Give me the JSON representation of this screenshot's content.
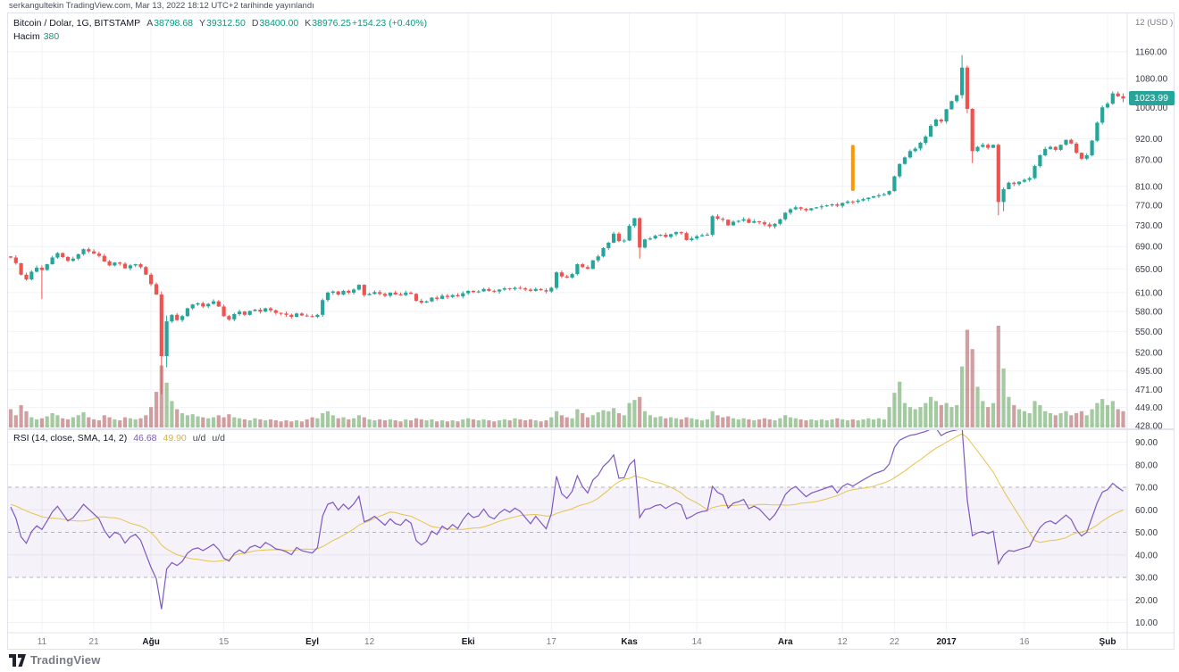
{
  "header": {
    "published": "serkangultekin TradingView.com, Mar 13, 2022 18:12 UTC+2 tarihinde yayınlandı"
  },
  "main_legend": {
    "title": "Bitcoin / Dolar, 1G, BITSTAMP",
    "ohlc": [
      {
        "k": "A",
        "v": "38798.68"
      },
      {
        "k": "Y",
        "v": "39312.50"
      },
      {
        "k": "D",
        "v": "38400.00"
      },
      {
        "k": "K",
        "v": "38976.25"
      }
    ],
    "change": "+154.23 (+0.40%)",
    "volume_label": "Hacim",
    "volume_value": "380"
  },
  "rsi_legend": {
    "title": "RSI (14, close, SMA, 14, 2)",
    "rsi_value": "46.68",
    "ma_value": "49.90",
    "suffix_tokens": [
      "u/d",
      "u/d"
    ]
  },
  "price_axis": {
    "unit_label": "12 (USD )",
    "ticks": [
      1160,
      1080,
      1000,
      920,
      870,
      810,
      770,
      730,
      690,
      650,
      610,
      580,
      550,
      520,
      495,
      471,
      449,
      428
    ],
    "last_price": "1023.99"
  },
  "rsi_axis": {
    "ticks": [
      90,
      80,
      70,
      60,
      50,
      40,
      30,
      20,
      10
    ],
    "dashed_levels": [
      70,
      50,
      30
    ]
  },
  "time_axis": {
    "labels": [
      {
        "t": "11",
        "i": 6,
        "b": 0
      },
      {
        "t": "21",
        "i": 16,
        "b": 0
      },
      {
        "t": "Ağu",
        "i": 27,
        "b": 1
      },
      {
        "t": "15",
        "i": 41,
        "b": 0
      },
      {
        "t": "Eyl",
        "i": 58,
        "b": 1
      },
      {
        "t": "12",
        "i": 69,
        "b": 0
      },
      {
        "t": "Eki",
        "i": 88,
        "b": 1
      },
      {
        "t": "17",
        "i": 104,
        "b": 0
      },
      {
        "t": "Kas",
        "i": 119,
        "b": 1
      },
      {
        "t": "14",
        "i": 132,
        "b": 0
      },
      {
        "t": "Ara",
        "i": 149,
        "b": 1
      },
      {
        "t": "12",
        "i": 160,
        "b": 0
      },
      {
        "t": "22",
        "i": 170,
        "b": 0
      },
      {
        "t": "2017",
        "i": 180,
        "b": 1
      },
      {
        "t": "16",
        "i": 195,
        "b": 0
      },
      {
        "t": "Şub",
        "i": 211,
        "b": 1
      }
    ]
  },
  "footer": {
    "brand": "TradingView"
  },
  "colors": {
    "up": "#26a69a",
    "down": "#ef5350",
    "vol_up": "rgba(103,167,99,0.6)",
    "vol_down": "rgba(178,95,98,0.6)",
    "rsi_line": "#7e57c2",
    "rsi_ma": "#e6c34d",
    "rsi_band": "rgba(126,87,194,0.08)",
    "dashed": "#9b9eab",
    "grid": "#f0f2f6",
    "separator": "#e0e3eb",
    "axis_text": "#363a45",
    "time_text": "#787b86",
    "time_text_bold": "#131722",
    "legend_value": "#089981",
    "badge_bg": "#26a69a",
    "annotation": "#ff9800"
  },
  "chart_data": {
    "type": "candlestick",
    "title": "Bitcoin / Dolar, 1G, BITSTAMP",
    "symbol": "Bitcoin / Dolar",
    "interval": "1G",
    "exchange": "BITSTAMP",
    "price_scale": "log",
    "ylim": [
      428,
      1285
    ],
    "rsi_period": 14,
    "rsi_ma_period": 14,
    "rsi_band": [
      30,
      70
    ],
    "open_rule": "previous_close",
    "preroll_closes": [
      585,
      570,
      590,
      618,
      645,
      668,
      695,
      710,
      700,
      688,
      672,
      665,
      658,
      664,
      640,
      625,
      635,
      648,
      660,
      668,
      662,
      655,
      663,
      670,
      666,
      661,
      668,
      673,
      669,
      664,
      668,
      672
    ],
    "candles": [
      [
        670,
        18
      ],
      [
        660,
        12
      ],
      [
        640,
        22
      ],
      [
        632,
        16
      ],
      [
        645,
        10
      ],
      [
        652,
        8
      ],
      [
        648,
        9
      ],
      [
        658,
        11
      ],
      [
        670,
        14
      ],
      [
        678,
        12
      ],
      [
        671,
        9
      ],
      [
        664,
        8
      ],
      [
        668,
        10
      ],
      [
        676,
        12
      ],
      [
        685,
        15
      ],
      [
        681,
        10
      ],
      [
        677,
        8
      ],
      [
        673,
        7
      ],
      [
        663,
        12
      ],
      [
        656,
        10
      ],
      [
        661,
        8
      ],
      [
        659,
        7
      ],
      [
        651,
        10
      ],
      [
        656,
        9
      ],
      [
        658,
        8
      ],
      [
        653,
        9
      ],
      [
        640,
        12
      ],
      [
        624,
        20
      ],
      [
        607,
        35
      ],
      [
        515,
        61
      ],
      [
        565,
        44
      ],
      [
        575,
        26
      ],
      [
        567,
        18
      ],
      [
        573,
        14
      ],
      [
        585,
        12
      ],
      [
        591,
        13
      ],
      [
        593,
        11
      ],
      [
        588,
        10
      ],
      [
        592,
        9
      ],
      [
        596,
        10
      ],
      [
        588,
        12
      ],
      [
        573,
        10
      ],
      [
        568,
        13
      ],
      [
        576,
        10
      ],
      [
        580,
        9
      ],
      [
        575,
        8
      ],
      [
        581,
        7
      ],
      [
        583,
        9
      ],
      [
        580,
        8
      ],
      [
        585,
        7
      ],
      [
        582,
        8
      ],
      [
        578,
        7
      ],
      [
        577,
        6
      ],
      [
        575,
        7
      ],
      [
        572,
        6
      ],
      [
        577,
        7
      ],
      [
        574,
        6
      ],
      [
        573,
        8
      ],
      [
        572,
        10
      ],
      [
        575,
        9
      ],
      [
        598,
        14
      ],
      [
        610,
        16
      ],
      [
        612,
        12
      ],
      [
        607,
        9
      ],
      [
        613,
        10
      ],
      [
        610,
        8
      ],
      [
        615,
        9
      ],
      [
        623,
        12
      ],
      [
        606,
        10
      ],
      [
        608,
        8
      ],
      [
        611,
        7
      ],
      [
        608,
        8
      ],
      [
        605,
        7
      ],
      [
        610,
        8
      ],
      [
        607,
        7
      ],
      [
        606,
        6
      ],
      [
        610,
        8
      ],
      [
        608,
        7
      ],
      [
        597,
        9
      ],
      [
        594,
        8
      ],
      [
        596,
        7
      ],
      [
        602,
        8
      ],
      [
        600,
        6
      ],
      [
        605,
        7
      ],
      [
        603,
        6
      ],
      [
        606,
        7
      ],
      [
        604,
        6
      ],
      [
        609,
        8
      ],
      [
        613,
        9
      ],
      [
        611,
        8
      ],
      [
        612,
        7
      ],
      [
        616,
        8
      ],
      [
        613,
        7
      ],
      [
        612,
        6
      ],
      [
        615,
        7
      ],
      [
        617,
        8
      ],
      [
        616,
        7
      ],
      [
        618,
        9
      ],
      [
        617,
        8
      ],
      [
        615,
        7
      ],
      [
        613,
        8
      ],
      [
        616,
        7
      ],
      [
        614,
        6
      ],
      [
        612,
        7
      ],
      [
        618,
        10
      ],
      [
        644,
        16
      ],
      [
        637,
        12
      ],
      [
        635,
        10
      ],
      [
        641,
        9
      ],
      [
        658,
        18
      ],
      [
        653,
        14
      ],
      [
        650,
        10
      ],
      [
        665,
        12
      ],
      [
        672,
        15
      ],
      [
        687,
        17
      ],
      [
        697,
        16
      ],
      [
        714,
        19
      ],
      [
        700,
        14
      ],
      [
        701,
        12
      ],
      [
        729,
        24
      ],
      [
        744,
        27
      ],
      [
        688,
        30
      ],
      [
        703,
        16
      ],
      [
        705,
        12
      ],
      [
        710,
        10
      ],
      [
        712,
        11
      ],
      [
        708,
        9
      ],
      [
        713,
        10
      ],
      [
        717,
        9
      ],
      [
        715,
        8
      ],
      [
        702,
        10
      ],
      [
        705,
        9
      ],
      [
        709,
        8
      ],
      [
        711,
        7
      ],
      [
        712,
        8
      ],
      [
        748,
        16
      ],
      [
        743,
        12
      ],
      [
        741,
        10
      ],
      [
        730,
        11
      ],
      [
        737,
        9
      ],
      [
        739,
        8
      ],
      [
        742,
        9
      ],
      [
        735,
        8
      ],
      [
        738,
        7
      ],
      [
        736,
        8
      ],
      [
        732,
        9
      ],
      [
        728,
        8
      ],
      [
        733,
        7
      ],
      [
        742,
        9
      ],
      [
        755,
        12
      ],
      [
        762,
        10
      ],
      [
        766,
        9
      ],
      [
        763,
        8
      ],
      [
        760,
        7
      ],
      [
        764,
        8
      ],
      [
        766,
        7
      ],
      [
        768,
        8
      ],
      [
        770,
        7
      ],
      [
        772,
        8
      ],
      [
        769,
        9
      ],
      [
        775,
        8
      ],
      [
        778,
        7
      ],
      [
        777,
        8
      ],
      [
        780,
        7
      ],
      [
        783,
        8
      ],
      [
        786,
        9
      ],
      [
        789,
        8
      ],
      [
        791,
        9
      ],
      [
        793,
        8
      ],
      [
        800,
        20
      ],
      [
        832,
        34
      ],
      [
        860,
        45
      ],
      [
        875,
        24
      ],
      [
        890,
        20
      ],
      [
        896,
        18
      ],
      [
        910,
        20
      ],
      [
        925,
        24
      ],
      [
        952,
        30
      ],
      [
        968,
        26
      ],
      [
        963,
        22
      ],
      [
        995,
        24
      ],
      [
        1017,
        20
      ],
      [
        1033,
        22
      ],
      [
        1112,
        60
      ],
      [
        996,
        96
      ],
      [
        890,
        77
      ],
      [
        900,
        40
      ],
      [
        905,
        26
      ],
      [
        898,
        20
      ],
      [
        905,
        24
      ],
      [
        777,
        100
      ],
      [
        804,
        58
      ],
      [
        818,
        30
      ],
      [
        815,
        22
      ],
      [
        820,
        18
      ],
      [
        824,
        16
      ],
      [
        828,
        14
      ],
      [
        855,
        26
      ],
      [
        880,
        22
      ],
      [
        895,
        16
      ],
      [
        900,
        14
      ],
      [
        893,
        12
      ],
      [
        905,
        14
      ],
      [
        917,
        16
      ],
      [
        908,
        12
      ],
      [
        886,
        14
      ],
      [
        872,
        16
      ],
      [
        880,
        12
      ],
      [
        915,
        18
      ],
      [
        960,
        24
      ],
      [
        1000,
        28
      ],
      [
        1010,
        22
      ],
      [
        1038,
        26
      ],
      [
        1030,
        18
      ],
      [
        1023.99,
        16
      ]
    ],
    "ohlc_overrides": {
      "6": [
        652,
        656,
        600,
        648
      ],
      "29": [
        607,
        612,
        465,
        515
      ],
      "30": [
        515,
        574,
        500,
        565
      ],
      "121": [
        744,
        746,
        668,
        688
      ],
      "183": [
        1033,
        1150,
        1024,
        1112
      ],
      "184": [
        1112,
        1118,
        985,
        996
      ],
      "185": [
        996,
        998,
        862,
        890
      ],
      "190": [
        905,
        908,
        750,
        777
      ],
      "191": [
        777,
        808,
        758,
        804
      ],
      "214": [
        1030,
        1038,
        1014,
        1023.99
      ]
    },
    "annotation": {
      "index": 162,
      "price_from": 800,
      "price_to": 905
    }
  }
}
